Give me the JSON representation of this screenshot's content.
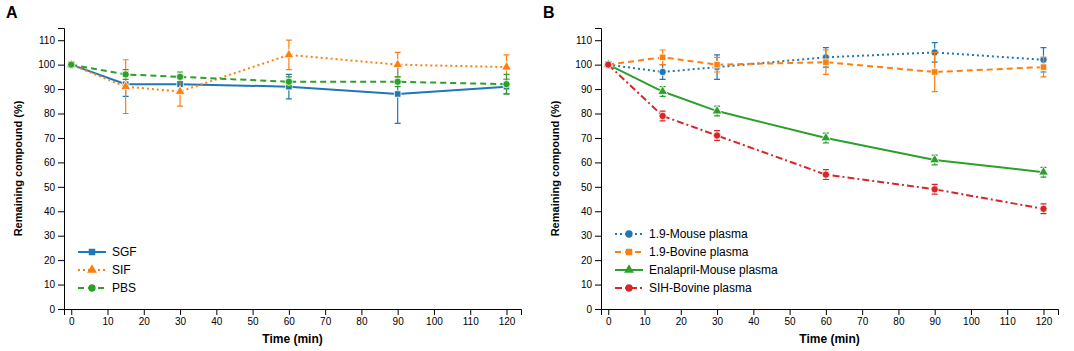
{
  "chart_data": [
    {
      "type": "line",
      "title": "A",
      "xlabel": "Time (min)",
      "ylabel": "Remaining compound (%)",
      "x": [
        0,
        15,
        30,
        60,
        90,
        120
      ],
      "series": [
        {
          "name": "SGF",
          "values": [
            100,
            92,
            92,
            91,
            88,
            91
          ],
          "error": [
            1,
            5,
            4,
            5,
            12,
            3
          ],
          "marker": "square",
          "line_style": "solid"
        },
        {
          "name": "SIF",
          "values": [
            100,
            91,
            89,
            104,
            100,
            99
          ],
          "error": [
            1,
            11,
            6,
            6,
            5,
            5
          ],
          "marker": "triangle",
          "line_style": "dotted"
        },
        {
          "name": "PBS",
          "values": [
            100,
            96,
            95,
            93,
            93,
            92
          ],
          "error": [
            1,
            2,
            2,
            2,
            2,
            4
          ],
          "marker": "circle",
          "line_style": "dashed"
        }
      ],
      "xlim": [
        -2,
        124
      ],
      "xticks": [
        0,
        10,
        20,
        30,
        40,
        50,
        60,
        70,
        80,
        90,
        100,
        110,
        120
      ],
      "ylim": [
        0,
        115
      ],
      "yticks": [
        0,
        10,
        20,
        30,
        40,
        50,
        60,
        70,
        80,
        90,
        100,
        110
      ],
      "grid": false,
      "legend": "lower left"
    },
    {
      "type": "line",
      "title": "B",
      "xlabel": "Time (min)",
      "ylabel": "Remaining compound (%)",
      "x": [
        0,
        15,
        30,
        60,
        90,
        120
      ],
      "series": [
        {
          "name": "1.9-Mouse plasma",
          "values": [
            100,
            97,
            99,
            103,
            105,
            102
          ],
          "error": [
            1,
            3,
            5,
            4,
            4,
            5
          ],
          "marker": "circle",
          "line_style": "dotted"
        },
        {
          "name": "1.9-Bovine plasma",
          "values": [
            100,
            103,
            100,
            101,
            97,
            99
          ],
          "error": [
            1,
            3,
            3,
            5,
            8,
            4
          ],
          "marker": "square",
          "line_style": "dashed"
        },
        {
          "name": "Enalapril-Mouse plasma",
          "values": [
            100,
            89,
            81,
            70,
            61,
            56
          ],
          "error": [
            1,
            2,
            2,
            2,
            2,
            2
          ],
          "marker": "triangle",
          "line_style": "solid"
        },
        {
          "name": "SIH-Bovine plasma",
          "values": [
            100,
            79,
            71,
            55,
            49,
            41
          ],
          "error": [
            1,
            2,
            2,
            2,
            2,
            2
          ],
          "marker": "circle",
          "line_style": "dashdot"
        }
      ],
      "xlim": [
        -2,
        124
      ],
      "xticks": [
        0,
        10,
        20,
        30,
        40,
        50,
        60,
        70,
        80,
        90,
        100,
        110,
        120
      ],
      "ylim": [
        0,
        115
      ],
      "yticks": [
        0,
        10,
        20,
        30,
        40,
        50,
        60,
        70,
        80,
        90,
        100,
        110
      ],
      "grid": false,
      "legend": "lower left"
    }
  ]
}
